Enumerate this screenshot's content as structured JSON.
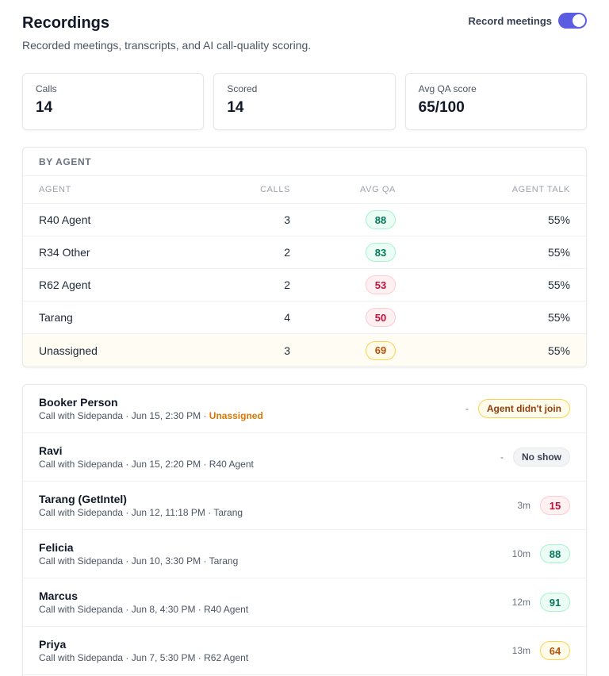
{
  "header": {
    "title": "Recordings",
    "subtitle": "Recorded meetings, transcripts, and AI call-quality scoring.",
    "record_toggle_label": "Record meetings",
    "record_toggle_on": true,
    "accent_color": "#5b5ce2"
  },
  "stats": [
    {
      "label": "Calls",
      "value": "14"
    },
    {
      "label": "Scored",
      "value": "14"
    },
    {
      "label": "Avg QA score",
      "value": "65/100"
    }
  ],
  "by_agent": {
    "title": "BY AGENT",
    "columns": [
      "AGENT",
      "CALLS",
      "AVG QA",
      "AGENT TALK"
    ],
    "rows": [
      {
        "agent": "R40 Agent",
        "calls": "3",
        "avg_qa": "88",
        "qa_tone": "green",
        "talk": "55%"
      },
      {
        "agent": "R34 Other",
        "calls": "2",
        "avg_qa": "83",
        "qa_tone": "green",
        "talk": "55%"
      },
      {
        "agent": "R62 Agent",
        "calls": "2",
        "avg_qa": "53",
        "qa_tone": "red",
        "talk": "55%"
      },
      {
        "agent": "Tarang",
        "calls": "4",
        "avg_qa": "50",
        "qa_tone": "red",
        "talk": "55%"
      },
      {
        "agent": "Unassigned",
        "calls": "3",
        "avg_qa": "69",
        "qa_tone": "amber",
        "talk": "55%"
      }
    ]
  },
  "calls": [
    {
      "name": "Booker Person",
      "meta": "Call with Sidepanda · Jun 15, 2:30 PM · ",
      "agent": "Unassigned",
      "duration": "-",
      "badge": "Agent didn't join",
      "badge_type": "amber"
    },
    {
      "name": "Ravi",
      "meta": "Call with Sidepanda · Jun 15, 2:20 PM · ",
      "agent": "R40 Agent",
      "duration": "-",
      "badge": "No show",
      "badge_type": "gray"
    },
    {
      "name": "Tarang (GetIntel)",
      "meta": "Call with Sidepanda · Jun 12, 11:18 PM · ",
      "agent": "Tarang",
      "duration": "3m",
      "badge": "15",
      "badge_type": "red"
    },
    {
      "name": "Felicia",
      "meta": "Call with Sidepanda · Jun 10, 3:30 PM · ",
      "agent": "Tarang",
      "duration": "10m",
      "badge": "88",
      "badge_type": "green"
    },
    {
      "name": "Marcus",
      "meta": "Call with Sidepanda · Jun 8, 4:30 PM · ",
      "agent": "R40 Agent",
      "duration": "12m",
      "badge": "91",
      "badge_type": "green"
    },
    {
      "name": "Priya",
      "meta": "Call with Sidepanda · Jun 7, 5:30 PM · ",
      "agent": "R62 Agent",
      "duration": "13m",
      "badge": "64",
      "badge_type": "amber"
    }
  ]
}
